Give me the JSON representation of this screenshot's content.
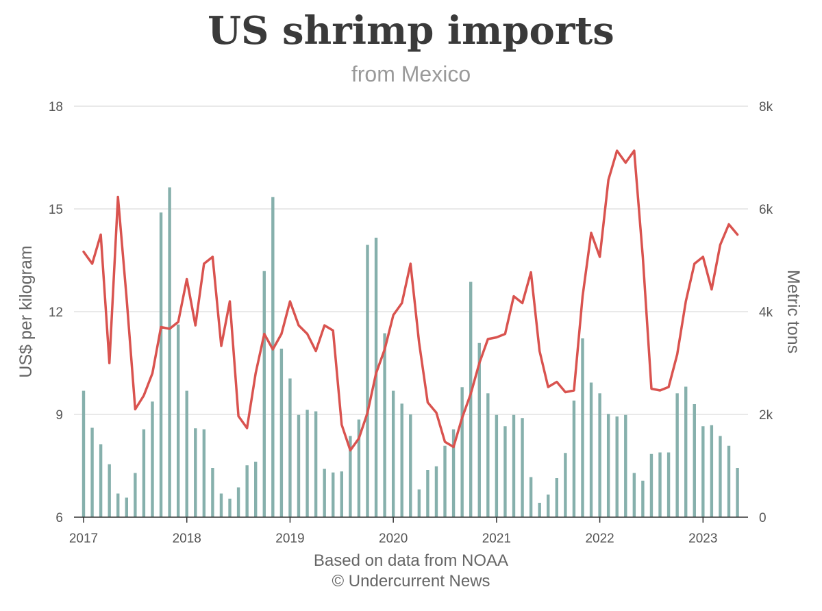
{
  "title": "US shrimp imports",
  "subtitle": "from Mexico",
  "source_line1": "Based on data from NOAA",
  "source_line2": "© Undercurrent News",
  "colors": {
    "line": "#d9534f",
    "bar": "#86b0ac",
    "grid": "#e2e2e2",
    "axis": "#333333"
  },
  "chart_data": {
    "type": "bar+line",
    "x_start": "2017-01",
    "x_labels": [
      "2017",
      "2018",
      "2019",
      "2020",
      "2021",
      "2022",
      "2023"
    ],
    "ylabel_left": "US$ per kilogram",
    "ylabel_right": "Metric tons",
    "ylim_left": [
      6,
      18
    ],
    "yticks_left": [
      "6",
      "9",
      "12",
      "15",
      "18"
    ],
    "ylim_right": [
      0,
      8000
    ],
    "yticks_right": [
      "0",
      "2k",
      "4k",
      "6k",
      "8k"
    ],
    "grid": true,
    "series": [
      {
        "name": "Metric tons",
        "type": "bar",
        "axis": "right",
        "values": [
          2460,
          1740,
          1420,
          1030,
          460,
          380,
          860,
          1710,
          2250,
          5930,
          6420,
          3750,
          2460,
          1730,
          1710,
          960,
          460,
          360,
          580,
          1010,
          1080,
          4790,
          6230,
          3280,
          2700,
          1990,
          2090,
          2060,
          940,
          870,
          890,
          1580,
          1900,
          5300,
          5440,
          3580,
          2460,
          2210,
          2000,
          540,
          920,
          990,
          1390,
          1710,
          2530,
          4580,
          3390,
          2410,
          1990,
          1770,
          1990,
          1930,
          780,
          280,
          440,
          760,
          1250,
          2270,
          3480,
          2620,
          2410,
          2010,
          1960,
          1990,
          860,
          710,
          1230,
          1260,
          1260,
          2410,
          2540,
          2200,
          1770,
          1790,
          1580,
          1390,
          960
        ]
      },
      {
        "name": "US$ per kilogram",
        "type": "line",
        "axis": "left",
        "values": [
          13.75,
          13.4,
          14.25,
          10.5,
          15.35,
          12.4,
          9.15,
          9.55,
          10.2,
          11.55,
          11.5,
          11.7,
          12.95,
          11.6,
          13.4,
          13.6,
          11.0,
          12.3,
          8.95,
          8.6,
          10.2,
          11.35,
          10.9,
          11.35,
          12.3,
          11.6,
          11.35,
          10.85,
          11.6,
          11.45,
          8.7,
          7.95,
          8.3,
          9.05,
          10.2,
          10.9,
          11.9,
          12.25,
          13.4,
          11.1,
          9.35,
          9.05,
          8.2,
          8.05,
          8.9,
          9.6,
          10.5,
          11.2,
          11.25,
          11.35,
          12.45,
          12.25,
          13.15,
          10.85,
          9.8,
          9.95,
          9.65,
          9.7,
          12.45,
          14.3,
          13.6,
          15.85,
          16.7,
          16.35,
          16.7,
          13.6,
          9.75,
          9.7,
          9.8,
          10.75,
          12.3,
          13.4,
          13.6,
          12.65,
          13.95,
          14.55,
          14.25
        ]
      }
    ]
  }
}
